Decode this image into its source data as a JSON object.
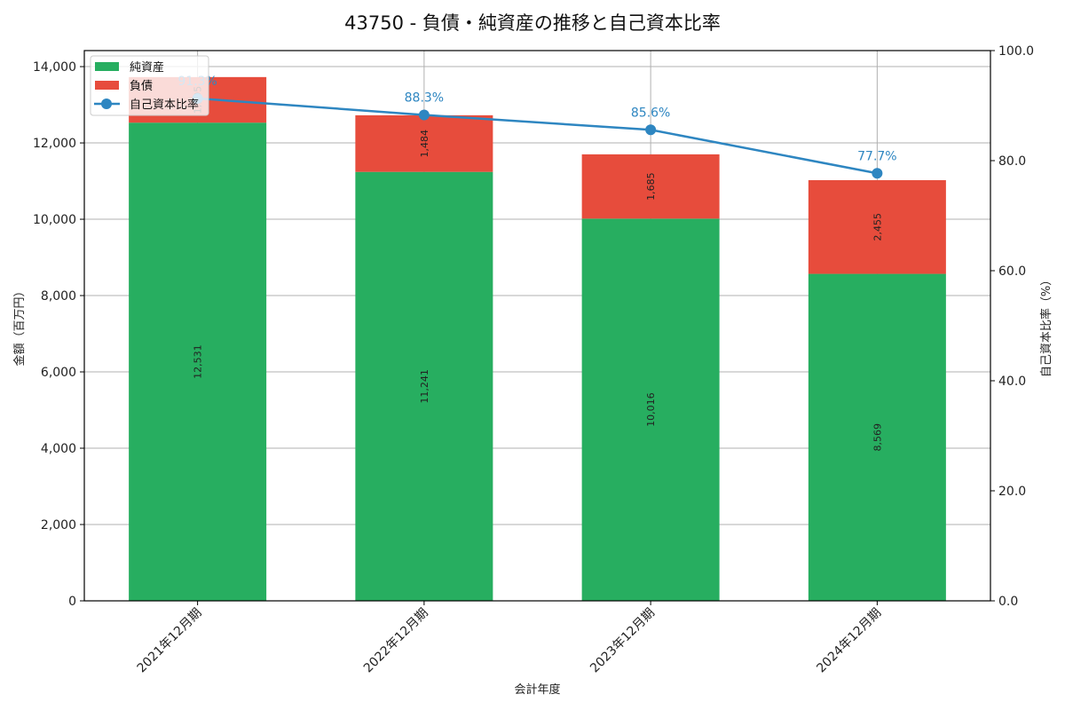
{
  "chart_data": {
    "type": "bar",
    "title": "43750 - 負債・純資産の推移と自己資本比率",
    "xlabel": "会計年度",
    "ylabel": "金額（百万円）",
    "y2label": "自己資本比率（%）",
    "categories": [
      "2021年12月期",
      "2022年12月期",
      "2023年12月期",
      "2024年12月期"
    ],
    "series": [
      {
        "name": "純資産",
        "type": "bar",
        "stacked": true,
        "color": "#27ae60",
        "values": [
          12531,
          11241,
          10016,
          8569
        ],
        "labels": [
          "12,531",
          "11,241",
          "10,016",
          "8,569"
        ]
      },
      {
        "name": "負債",
        "type": "bar",
        "stacked": true,
        "color": "#e74c3c",
        "values": [
          1195,
          1484,
          1685,
          2455
        ],
        "labels": [
          "1,195",
          "1,484",
          "1,685",
          "2,455"
        ]
      },
      {
        "name": "自己資本比率",
        "type": "line",
        "axis": "right",
        "color": "#2e86c1",
        "values": [
          91.3,
          88.3,
          85.6,
          77.7
        ],
        "labels": [
          "91.3%",
          "88.3%",
          "85.6%",
          "77.7%"
        ]
      }
    ],
    "ylim": [
      0,
      14420
    ],
    "y2lim": [
      0,
      100
    ],
    "yticks": [
      "0",
      "2,000",
      "4,000",
      "6,000",
      "8,000",
      "10,000",
      "12,000",
      "14,000"
    ],
    "y2ticks": [
      "0.0",
      "20.0",
      "40.0",
      "60.0",
      "80.0",
      "100.0"
    ],
    "grid": true,
    "legend_position": "upper left"
  }
}
